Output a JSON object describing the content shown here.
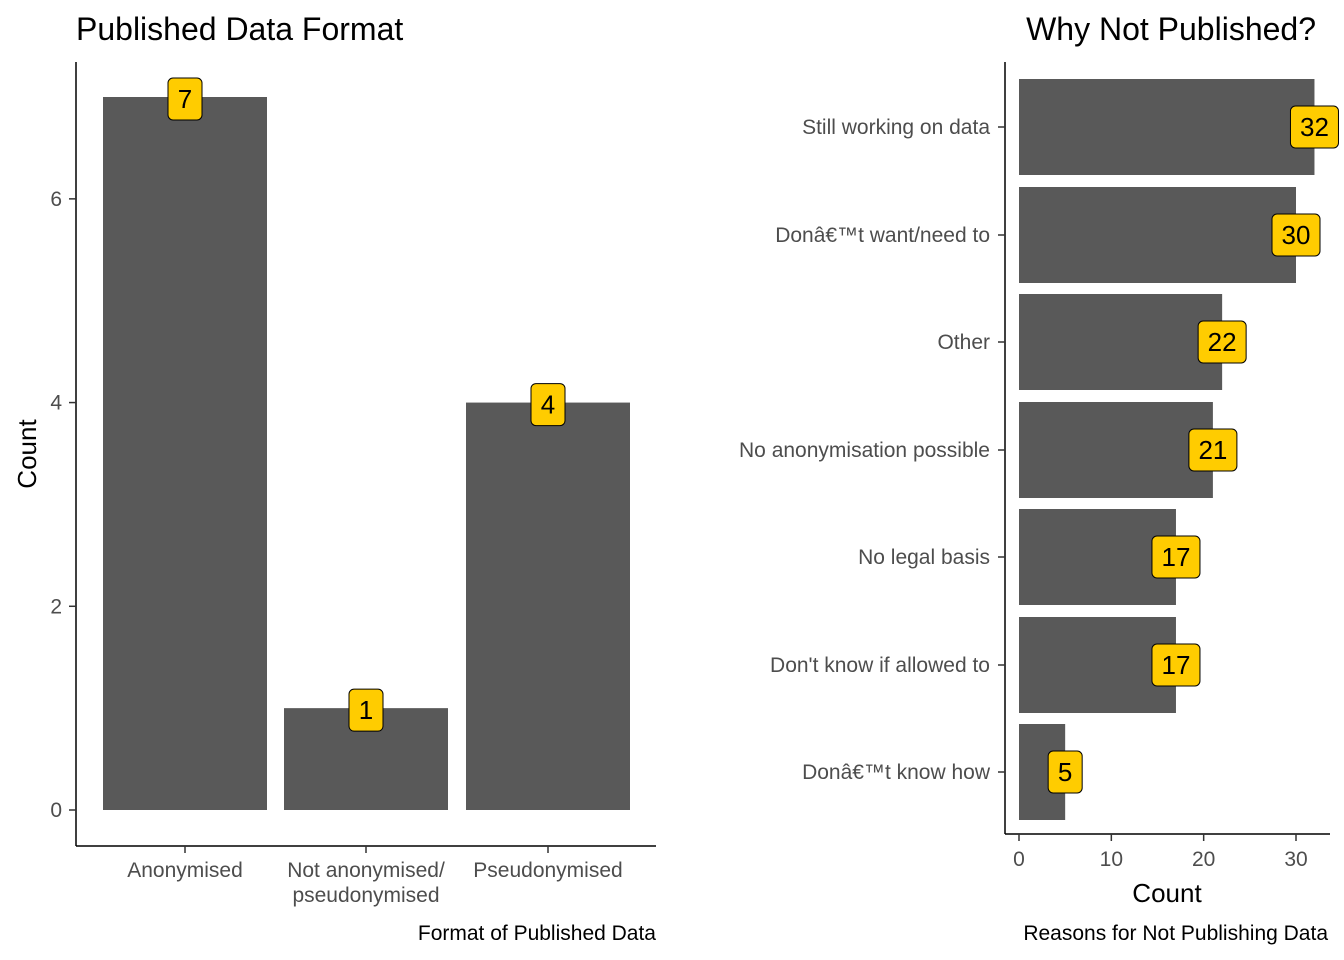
{
  "chart_data": [
    {
      "type": "bar",
      "orientation": "vertical",
      "title": "Published Data Format",
      "xlabel": "",
      "ylabel": "Count",
      "caption": "Format of Published Data",
      "categories": [
        [
          "Anonymised"
        ],
        [
          "Not anonymised/",
          "pseudonymised"
        ],
        [
          "Pseudonymised"
        ]
      ],
      "values": [
        7,
        1,
        4
      ],
      "ylim": [
        0,
        7.3
      ],
      "yticks": [
        0,
        2,
        4,
        6
      ],
      "grid": false,
      "bar_color": "#595959",
      "label_color": "#FFCC00"
    },
    {
      "type": "bar",
      "orientation": "horizontal",
      "title": "Why Not Published?",
      "xlabel": "Count",
      "ylabel": "",
      "caption": "Reasons for Not Publishing Data",
      "categories": [
        "Still working on data",
        "Donâ€™t want/need to",
        "Other",
        "No anonymisation possible",
        "No legal basis",
        "Don't know if allowed to",
        "Donâ€™t know how"
      ],
      "values": [
        32,
        30,
        22,
        21,
        17,
        17,
        5
      ],
      "xlim": [
        0,
        33
      ],
      "xticks": [
        0,
        10,
        20,
        30
      ],
      "grid": false,
      "bar_color": "#595959",
      "label_color": "#FFCC00"
    }
  ]
}
